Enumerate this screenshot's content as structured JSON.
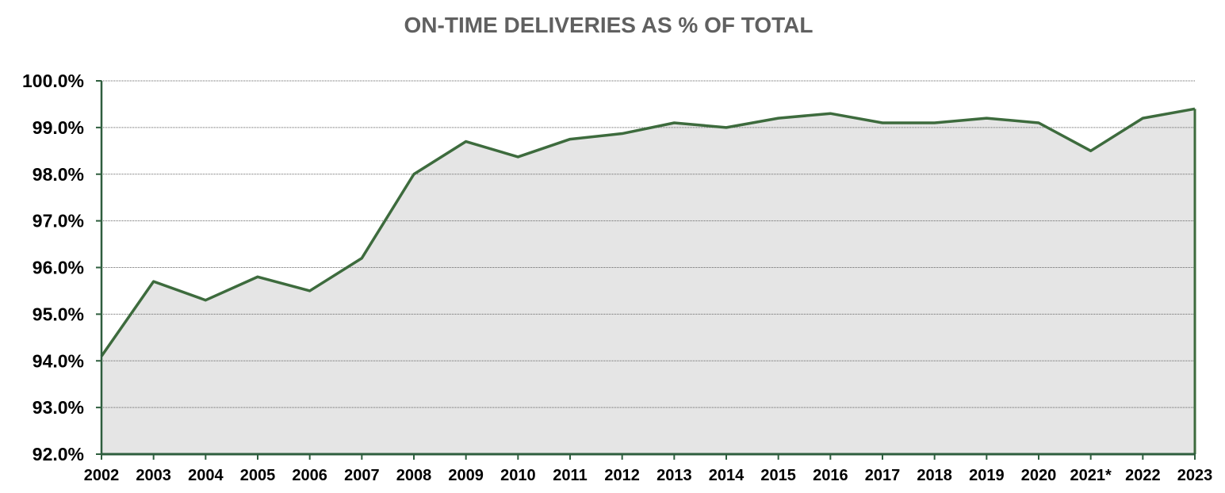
{
  "chart_data": {
    "type": "area",
    "title": "ON-TIME DELIVERIES AS % OF TOTAL",
    "xlabel": "",
    "ylabel": "",
    "categories": [
      "2002",
      "2003",
      "2004",
      "2005",
      "2006",
      "2007",
      "2008",
      "2009",
      "2010",
      "2011",
      "2012",
      "2013",
      "2014",
      "2015",
      "2016",
      "2017",
      "2018",
      "2019",
      "2020",
      "2021*",
      "2022",
      "2023"
    ],
    "values": [
      94.1,
      95.7,
      95.3,
      95.8,
      95.5,
      96.2,
      98.0,
      98.7,
      98.37,
      98.75,
      98.87,
      99.1,
      99.0,
      99.2,
      99.3,
      99.1,
      99.1,
      99.2,
      99.1,
      98.5,
      99.2,
      99.4
    ],
    "ylim": [
      92,
      100
    ],
    "yticks": [
      "92.0%",
      "93.0%",
      "94.0%",
      "95.0%",
      "96.0%",
      "97.0%",
      "98.0%",
      "99.0%",
      "100.0%"
    ],
    "ytick_values": [
      92,
      93,
      94,
      95,
      96,
      97,
      98,
      99,
      100
    ],
    "grid": true,
    "legend": "none",
    "colors": {
      "line": "#3d6b3d",
      "fill": "#e5e5e5",
      "axis": "#2e5e3e",
      "grid": "#666666"
    }
  }
}
